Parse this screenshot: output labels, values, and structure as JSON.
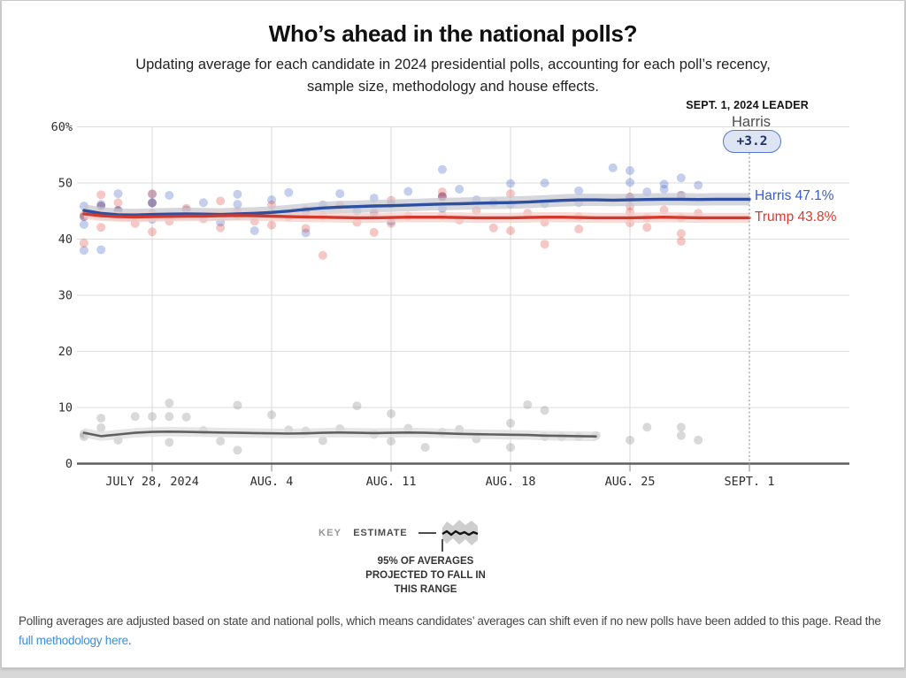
{
  "page": {
    "title": "Who’s ahead in the national polls?",
    "subtitle_line1": "Updating average for each candidate in 2024 presidential polls, accounting for each poll’s recency,",
    "subtitle_line2": "sample size, methodology and house effects.",
    "footer_text": "Polling averages are adjusted based on state and national polls, which means candidates’ averages can shift even if no new polls have been added to this page. Read the ",
    "footer_link": "full methodology here",
    "footer_period": "."
  },
  "leader": {
    "label": "SEPT. 1, 2024 LEADER",
    "name": "Harris",
    "margin": "+3.2"
  },
  "key": {
    "key_word": "KEY",
    "estimate_word": "ESTIMATE",
    "caption_line1": "95% OF AVERAGES",
    "caption_line2": "PROJECTED TO FALL IN",
    "caption_line3": "THIS RANGE"
  },
  "chart_data": {
    "type": "line",
    "title": "Who’s ahead in the national polls?",
    "x_axis": {
      "unit": "date",
      "day0_date": "JULY 24, 2024",
      "tick_labels": [
        "JULY 28, 2024",
        "AUG. 4",
        "AUG. 11",
        "AUG. 18",
        "AUG. 25",
        "SEPT. 1"
      ],
      "tick_days": [
        4,
        11,
        18,
        25,
        32,
        39
      ]
    },
    "y_axis": {
      "tick_values": [
        0,
        10,
        20,
        30,
        40,
        50,
        60
      ],
      "tick_labels": [
        "0",
        "10",
        "20",
        "30",
        "40",
        "50",
        "60%"
      ],
      "range": [
        0,
        60
      ]
    },
    "grid": true,
    "annotation_day": 39,
    "legend_position": "below",
    "series": [
      {
        "name": "Harris",
        "end_label": "Harris 47.1%",
        "current_value": 47.1,
        "color": "#2d4fa1",
        "band_color": "#c6c8d0",
        "band_width": 1.1,
        "points": [
          [
            0,
            45.1
          ],
          [
            1,
            44.6
          ],
          [
            2,
            44.35
          ],
          [
            3,
            44.3
          ],
          [
            4,
            44.4
          ],
          [
            5,
            44.45
          ],
          [
            6,
            44.5
          ],
          [
            7,
            44.45
          ],
          [
            8,
            44.4
          ],
          [
            9,
            44.5
          ],
          [
            10,
            44.6
          ],
          [
            11,
            44.75
          ],
          [
            12,
            45.0
          ],
          [
            13,
            45.3
          ],
          [
            14,
            45.55
          ],
          [
            15,
            45.7
          ],
          [
            16,
            45.8
          ],
          [
            17,
            45.9
          ],
          [
            18,
            45.95
          ],
          [
            19,
            46.05
          ],
          [
            20,
            46.15
          ],
          [
            21,
            46.25
          ],
          [
            22,
            46.3
          ],
          [
            23,
            46.4
          ],
          [
            24,
            46.45
          ],
          [
            25,
            46.5
          ],
          [
            26,
            46.6
          ],
          [
            27,
            46.75
          ],
          [
            28,
            46.9
          ],
          [
            29,
            47.0
          ],
          [
            30,
            47.0
          ],
          [
            31,
            46.95
          ],
          [
            32,
            47.0
          ],
          [
            33,
            47.05
          ],
          [
            34,
            47.1
          ],
          [
            35,
            47.1
          ],
          [
            36,
            47.05
          ],
          [
            37,
            47.1
          ],
          [
            38,
            47.1
          ],
          [
            39,
            47.1
          ]
        ]
      },
      {
        "name": "Trump",
        "end_label": "Trump 43.8%",
        "current_value": 43.8,
        "color": "#d2382c",
        "band_color": "#f2cdc8",
        "band_width": 0.9,
        "points": [
          [
            0,
            44.5
          ],
          [
            1,
            44.15
          ],
          [
            2,
            44.0
          ],
          [
            3,
            43.95
          ],
          [
            4,
            44.0
          ],
          [
            5,
            44.05
          ],
          [
            6,
            44.1
          ],
          [
            7,
            44.1
          ],
          [
            8,
            44.15
          ],
          [
            9,
            44.2
          ],
          [
            10,
            44.15
          ],
          [
            11,
            44.1
          ],
          [
            12,
            44.0
          ],
          [
            13,
            43.95
          ],
          [
            14,
            43.9
          ],
          [
            15,
            43.85
          ],
          [
            16,
            43.8
          ],
          [
            17,
            43.8
          ],
          [
            18,
            43.85
          ],
          [
            19,
            43.9
          ],
          [
            20,
            43.9
          ],
          [
            21,
            43.9
          ],
          [
            22,
            43.85
          ],
          [
            23,
            43.8
          ],
          [
            24,
            43.8
          ],
          [
            25,
            43.8
          ],
          [
            26,
            43.85
          ],
          [
            27,
            43.9
          ],
          [
            28,
            43.9
          ],
          [
            29,
            43.85
          ],
          [
            30,
            43.8
          ],
          [
            31,
            43.8
          ],
          [
            32,
            43.8
          ],
          [
            33,
            43.85
          ],
          [
            34,
            43.9
          ],
          [
            35,
            43.85
          ],
          [
            36,
            43.8
          ],
          [
            37,
            43.8
          ],
          [
            38,
            43.8
          ],
          [
            39,
            43.8
          ]
        ]
      },
      {
        "name": "Other",
        "end_label": "",
        "current_value": 4.9,
        "color": "#606060",
        "band_color": "#dcdcdc",
        "band_width": 0.85,
        "points": [
          [
            0,
            5.5
          ],
          [
            1,
            4.9
          ],
          [
            2,
            5.2
          ],
          [
            3,
            5.5
          ],
          [
            4,
            5.65
          ],
          [
            5,
            5.7
          ],
          [
            6,
            5.65
          ],
          [
            7,
            5.6
          ],
          [
            8,
            5.55
          ],
          [
            9,
            5.5
          ],
          [
            10,
            5.45
          ],
          [
            11,
            5.4
          ],
          [
            12,
            5.35
          ],
          [
            13,
            5.4
          ],
          [
            14,
            5.5
          ],
          [
            15,
            5.55
          ],
          [
            16,
            5.5
          ],
          [
            17,
            5.45
          ],
          [
            18,
            5.5
          ],
          [
            19,
            5.55
          ],
          [
            20,
            5.5
          ],
          [
            21,
            5.4
          ],
          [
            22,
            5.3
          ],
          [
            23,
            5.25
          ],
          [
            24,
            5.2
          ],
          [
            25,
            5.15
          ],
          [
            26,
            5.1
          ],
          [
            27,
            5.0
          ],
          [
            28,
            4.95
          ],
          [
            29,
            4.9
          ],
          [
            30,
            4.85
          ]
        ]
      }
    ],
    "poll_dots": {
      "harris": [
        [
          0,
          45.9
        ],
        [
          0,
          42.6
        ],
        [
          0,
          38.0
        ],
        [
          1,
          46.2
        ],
        [
          1,
          38.1
        ],
        [
          2,
          48.1
        ],
        [
          2,
          45.1
        ],
        [
          3,
          44.0
        ],
        [
          4,
          48.0
        ],
        [
          4,
          46.4
        ],
        [
          4,
          43.5
        ],
        [
          5,
          47.8
        ],
        [
          5,
          44.2
        ],
        [
          6,
          45.2
        ],
        [
          7,
          46.5
        ],
        [
          7,
          44.0
        ],
        [
          8,
          43.0
        ],
        [
          9,
          48.0
        ],
        [
          9,
          46.2
        ],
        [
          10,
          44.1
        ],
        [
          10,
          41.5
        ],
        [
          11,
          47.0
        ],
        [
          11,
          44.5
        ],
        [
          12,
          48.3
        ],
        [
          13,
          45.2
        ],
        [
          13,
          41.1
        ],
        [
          14,
          46.1
        ],
        [
          15,
          48.1
        ],
        [
          16,
          45.0
        ],
        [
          17,
          47.3
        ],
        [
          17,
          44.4
        ],
        [
          18,
          46.3
        ],
        [
          18,
          43.2
        ],
        [
          19,
          48.5
        ],
        [
          21,
          52.4
        ],
        [
          21,
          45.4
        ],
        [
          22,
          48.9
        ],
        [
          23,
          47.0
        ],
        [
          24,
          46.5
        ],
        [
          25,
          49.9
        ],
        [
          25,
          46.2
        ],
        [
          27,
          50.0
        ],
        [
          27,
          46.3
        ],
        [
          29,
          48.6
        ],
        [
          29,
          46.5
        ],
        [
          31,
          52.7
        ],
        [
          32,
          52.2
        ],
        [
          32,
          50.1
        ],
        [
          33,
          48.4
        ],
        [
          34,
          49.8
        ],
        [
          34,
          48.9
        ],
        [
          35,
          50.9
        ],
        [
          36,
          49.6
        ]
      ],
      "trump": [
        [
          0,
          44.3
        ],
        [
          0,
          39.3
        ],
        [
          1,
          47.9
        ],
        [
          1,
          42.1
        ],
        [
          2,
          46.5
        ],
        [
          3,
          42.8
        ],
        [
          4,
          48.1
        ],
        [
          4,
          44.6
        ],
        [
          4,
          41.3
        ],
        [
          5,
          43.2
        ],
        [
          6,
          45.5
        ],
        [
          7,
          43.6
        ],
        [
          8,
          46.8
        ],
        [
          8,
          42.0
        ],
        [
          9,
          44.9
        ],
        [
          10,
          43.2
        ],
        [
          11,
          46.1
        ],
        [
          11,
          42.5
        ],
        [
          12,
          44.0
        ],
        [
          13,
          41.9
        ],
        [
          14,
          37.1
        ],
        [
          14,
          44.2
        ],
        [
          15,
          46.0
        ],
        [
          16,
          43.0
        ],
        [
          17,
          44.8
        ],
        [
          17,
          41.2
        ],
        [
          18,
          46.9
        ],
        [
          18,
          42.8
        ],
        [
          19,
          44.1
        ],
        [
          21,
          48.4
        ],
        [
          21,
          47.5
        ],
        [
          21,
          44.2
        ],
        [
          22,
          43.4
        ],
        [
          23,
          45.1
        ],
        [
          24,
          42.0
        ],
        [
          25,
          48.1
        ],
        [
          25,
          41.5
        ],
        [
          26,
          44.6
        ],
        [
          27,
          43.0
        ],
        [
          27,
          39.1
        ],
        [
          29,
          44.0
        ],
        [
          29,
          41.8
        ],
        [
          32,
          47.5
        ],
        [
          32,
          45.9
        ],
        [
          32,
          44.8
        ],
        [
          32,
          42.9
        ],
        [
          33,
          43.8
        ],
        [
          33,
          42.1
        ],
        [
          34,
          45.2
        ],
        [
          35,
          43.8
        ],
        [
          35,
          41.0
        ],
        [
          35,
          39.6
        ],
        [
          36,
          44.6
        ]
      ],
      "overlap": [
        [
          0,
          44.0
        ],
        [
          1,
          45.9
        ],
        [
          2,
          45.1
        ],
        [
          4,
          46.5
        ],
        [
          9,
          44.3
        ],
        [
          13,
          44.9
        ],
        [
          21,
          47.6
        ],
        [
          32,
          47.4
        ],
        [
          35,
          47.8
        ]
      ],
      "other": [
        [
          0,
          5.3
        ],
        [
          0,
          4.8
        ],
        [
          1,
          8.1
        ],
        [
          1,
          6.4
        ],
        [
          2,
          4.2
        ],
        [
          3,
          8.4
        ],
        [
          4,
          8.4
        ],
        [
          5,
          10.8
        ],
        [
          5,
          8.4
        ],
        [
          5,
          3.8
        ],
        [
          6,
          8.3
        ],
        [
          7,
          5.9
        ],
        [
          8,
          4.0
        ],
        [
          9,
          2.4
        ],
        [
          9,
          10.4
        ],
        [
          11,
          8.7
        ],
        [
          12,
          6.0
        ],
        [
          13,
          5.8
        ],
        [
          14,
          4.1
        ],
        [
          15,
          6.2
        ],
        [
          16,
          10.3
        ],
        [
          17,
          5.2
        ],
        [
          18,
          8.9
        ],
        [
          18,
          4.0
        ],
        [
          19,
          6.3
        ],
        [
          20,
          2.9
        ],
        [
          21,
          5.6
        ],
        [
          22,
          6.1
        ],
        [
          23,
          4.4
        ],
        [
          25,
          7.2
        ],
        [
          25,
          2.9
        ],
        [
          26,
          10.5
        ],
        [
          27,
          9.5
        ],
        [
          27,
          4.8
        ],
        [
          28,
          4.8
        ],
        [
          29,
          4.8
        ],
        [
          30,
          5.0
        ],
        [
          32,
          4.2
        ],
        [
          33,
          6.5
        ],
        [
          35,
          6.5
        ],
        [
          35,
          5.0
        ],
        [
          36,
          4.2
        ]
      ]
    },
    "dot_colors": {
      "harris": "rgba(61,93,196,0.30)",
      "trump": "rgba(220,58,46,0.28)",
      "overlap": "rgba(108,62,118,0.45)",
      "other": "rgba(118,118,118,0.28)"
    }
  }
}
